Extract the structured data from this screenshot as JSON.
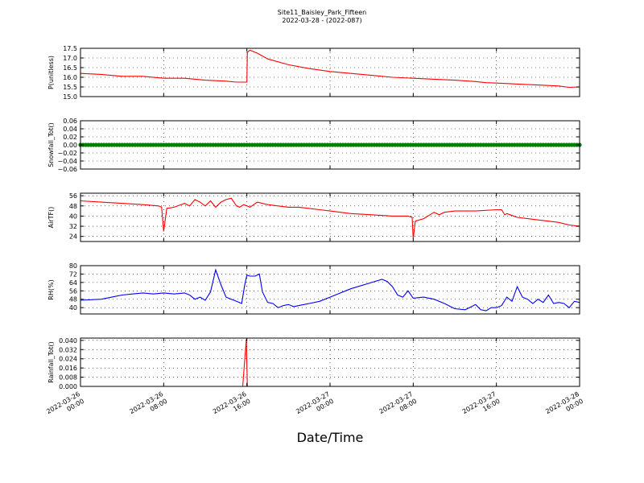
{
  "title_line1": "Site11_Baisley_Park_Fifteen",
  "title_line2": "2022-03-28 - (2022-087)",
  "xlabel": "Date/Time",
  "x_ticks": [
    [
      "2022-03-26",
      "00:00"
    ],
    [
      "2022-03-26",
      "08:00"
    ],
    [
      "2022-03-26",
      "16:00"
    ],
    [
      "2022-03-27",
      "00:00"
    ],
    [
      "2022-03-27",
      "08:00"
    ],
    [
      "2022-03-27",
      "16:00"
    ],
    [
      "2022-03-28",
      "00:00"
    ]
  ],
  "chart_data": [
    {
      "type": "line",
      "ylabel": "P(unitless)",
      "ylim": [
        15.0,
        17.5
      ],
      "yticks": [
        "15.0",
        "15.5",
        "16.0",
        "16.5",
        "17.0",
        "17.5"
      ],
      "ytick_values": [
        15.0,
        15.5,
        16.0,
        16.5,
        17.0,
        17.5
      ],
      "xlim_hours": [
        0,
        48
      ],
      "color": "#ff0000",
      "grid": true,
      "x_hours": [
        0,
        2,
        4,
        6,
        8,
        9,
        10,
        12,
        14,
        15,
        16,
        16.05,
        16.3,
        17,
        18,
        20,
        22,
        24,
        26,
        28,
        30,
        32,
        34,
        36,
        38,
        39,
        40,
        42,
        44,
        46,
        47,
        48
      ],
      "values": [
        16.2,
        16.15,
        16.05,
        16.05,
        15.95,
        15.95,
        15.95,
        15.85,
        15.8,
        15.75,
        15.75,
        17.3,
        17.4,
        17.25,
        16.95,
        16.65,
        16.45,
        16.3,
        16.2,
        16.1,
        16.0,
        15.95,
        15.9,
        15.85,
        15.78,
        15.72,
        15.7,
        15.65,
        15.6,
        15.55,
        15.48,
        15.5
      ]
    },
    {
      "type": "scatter",
      "ylabel": "Snowfall_Tot()",
      "ylim": [
        -0.06,
        0.06
      ],
      "yticks": [
        "−0.06",
        "−0.04",
        "−0.02",
        "0.00",
        "0.02",
        "0.04",
        "0.06"
      ],
      "ytick_values": [
        -0.06,
        -0.04,
        -0.02,
        0.0,
        0.02,
        0.04,
        0.06
      ],
      "xlim_hours": [
        0,
        48
      ],
      "color": "#008000",
      "grid": true,
      "constant_value": 0.0
    },
    {
      "type": "line",
      "ylabel": "AirTF()",
      "ylim": [
        20,
        58
      ],
      "yticks": [
        "24",
        "32",
        "40",
        "48",
        "56"
      ],
      "ytick_values": [
        24,
        32,
        40,
        48,
        56
      ],
      "xlim_hours": [
        0,
        48
      ],
      "color": "#ff0000",
      "grid": true,
      "x_hours": [
        0,
        2,
        4,
        6,
        7.5,
        7.8,
        8.0,
        8.3,
        9,
        10,
        10.5,
        11,
        11.5,
        12,
        12.5,
        13,
        13.5,
        14,
        14.5,
        15,
        15.3,
        15.7,
        16.0,
        16.3,
        17,
        18,
        19,
        20,
        21,
        22,
        23,
        24,
        26,
        28,
        30,
        31.5,
        31.9,
        32.0,
        32.2,
        33,
        34,
        34.5,
        35,
        36,
        38,
        40,
        40.5,
        40.8,
        41,
        42,
        43,
        44,
        45,
        46,
        47,
        48
      ],
      "values": [
        52,
        51,
        50,
        49,
        48,
        47,
        28,
        46,
        47,
        50,
        48,
        53,
        51,
        48,
        52,
        47,
        51,
        53,
        54,
        48,
        47,
        49,
        48,
        47,
        51,
        49,
        48,
        47,
        47,
        46,
        45,
        44,
        42,
        41,
        40,
        40,
        39,
        22,
        36,
        38,
        43,
        41,
        43,
        44,
        44,
        45,
        45,
        41,
        42,
        39,
        38,
        37,
        36,
        35,
        33,
        32
      ]
    },
    {
      "type": "line",
      "ylabel": "RH(%)",
      "ylim": [
        34,
        80
      ],
      "yticks": [
        "40",
        "48",
        "56",
        "64",
        "72",
        "80"
      ],
      "ytick_values": [
        40,
        48,
        56,
        64,
        72,
        80
      ],
      "xlim_hours": [
        0,
        48
      ],
      "color": "#0000ff",
      "grid": true,
      "x_hours": [
        0,
        2,
        3,
        4,
        5,
        6,
        7,
        8,
        9,
        10,
        10.5,
        11,
        11.5,
        12,
        12.5,
        13,
        13.5,
        14,
        14.5,
        15,
        15.5,
        15.8,
        16.0,
        16.3,
        16.8,
        17.2,
        17.5,
        18,
        18.5,
        19,
        19.5,
        20,
        20.5,
        21,
        22,
        23,
        24,
        26,
        28,
        29,
        29.5,
        30,
        30.5,
        31,
        31.5,
        32,
        33,
        34,
        35,
        36,
        37,
        38,
        38.5,
        39,
        39.5,
        40,
        40.5,
        41,
        41.5,
        42,
        42.5,
        43,
        43.5,
        44,
        44.5,
        45,
        45.5,
        46,
        46.5,
        47,
        47.5,
        48
      ],
      "values": [
        47,
        48,
        50,
        52,
        53,
        54,
        53,
        54,
        53,
        54,
        52,
        48,
        50,
        47,
        55,
        76,
        62,
        50,
        48,
        46,
        44,
        62,
        71,
        70,
        70,
        72,
        55,
        45,
        44,
        40,
        42,
        43,
        41,
        42,
        44,
        46,
        50,
        58,
        64,
        67,
        65,
        60,
        52,
        50,
        56,
        49,
        50,
        48,
        44,
        39,
        38,
        43,
        38,
        37,
        40,
        40,
        42,
        50,
        46,
        60,
        50,
        48,
        44,
        48,
        45,
        52,
        44,
        45,
        44,
        40,
        46,
        45
      ]
    },
    {
      "type": "line",
      "ylabel": "Rainfall_Tot()",
      "ylim": [
        0.0,
        0.042
      ],
      "yticks": [
        "0.000",
        "0.008",
        "0.016",
        "0.024",
        "0.032",
        "0.040"
      ],
      "ytick_values": [
        0.0,
        0.008,
        0.016,
        0.024,
        0.032,
        0.04
      ],
      "xlim_hours": [
        0,
        48
      ],
      "color": "#ff0000",
      "grid": true,
      "x_hours": [
        0,
        15.6,
        15.95,
        16.05,
        16.1,
        48
      ],
      "values": [
        0.0,
        0.0,
        0.041,
        0.0,
        0.0,
        0.0
      ]
    }
  ]
}
